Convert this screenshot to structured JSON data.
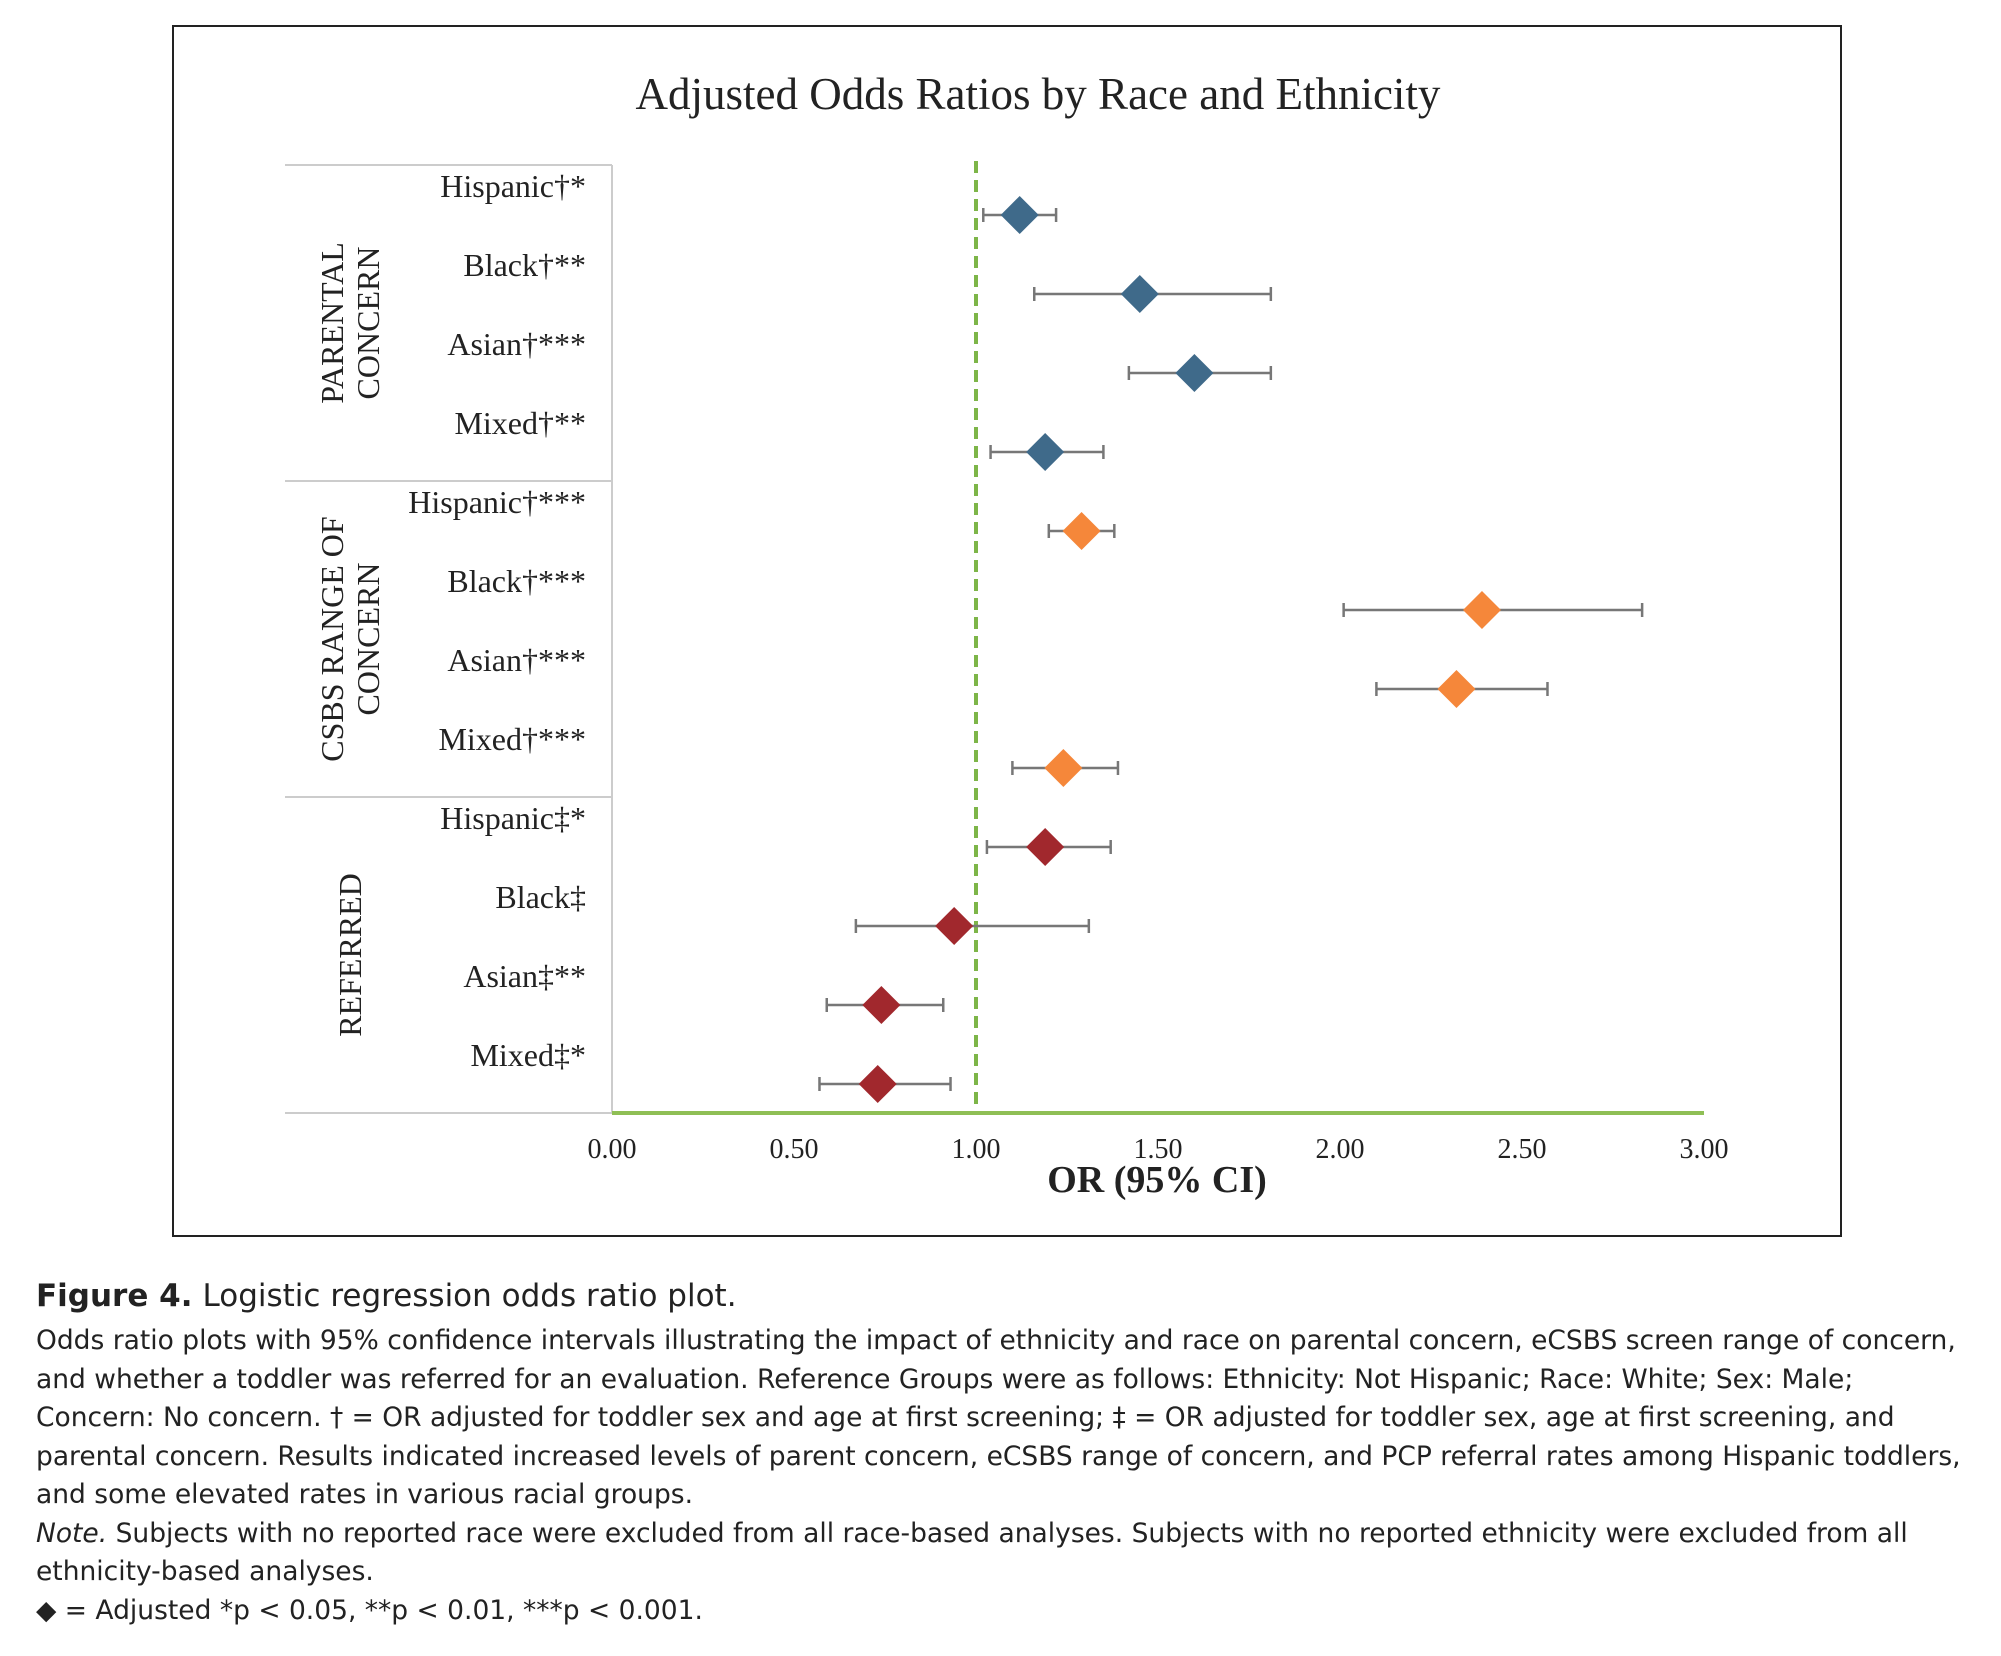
{
  "chart_data": {
    "type": "forest",
    "title": "Adjusted Odds Ratios by Race and Ethnicity",
    "xlabel": "OR (95% CI)",
    "xlim": [
      0,
      3
    ],
    "xticks": [
      0,
      0.5,
      1,
      1.5,
      2,
      2.5,
      3
    ],
    "xtick_labels": [
      "0.00",
      "0.50",
      "1.00",
      "1.50",
      "2.00",
      "2.50",
      "3.00"
    ],
    "reference_line": 1.0,
    "groups": [
      {
        "label": "PARENTAL CONCERN",
        "label_lines": [
          "PARENTAL",
          "CONCERN"
        ],
        "color": "#3f6a8a",
        "rows": [
          {
            "label": "Hispanic†*",
            "or": 1.12,
            "lo": 1.02,
            "hi": 1.22
          },
          {
            "label": "Black†**",
            "or": 1.45,
            "lo": 1.16,
            "hi": 1.81
          },
          {
            "label": "Asian†***",
            "or": 1.6,
            "lo": 1.42,
            "hi": 1.81
          },
          {
            "label": "Mixed†**",
            "or": 1.19,
            "lo": 1.04,
            "hi": 1.35
          }
        ]
      },
      {
        "label": "CSBS RANGE OF CONCERN",
        "label_lines": [
          "CSBS RANGE OF",
          "CONCERN"
        ],
        "color": "#f5873a",
        "rows": [
          {
            "label": "Hispanic†***",
            "or": 1.29,
            "lo": 1.2,
            "hi": 1.38
          },
          {
            "label": "Black†***",
            "or": 2.39,
            "lo": 2.01,
            "hi": 2.83
          },
          {
            "label": "Asian†***",
            "or": 2.32,
            "lo": 2.1,
            "hi": 2.57
          },
          {
            "label": "Mixed†***",
            "or": 1.24,
            "lo": 1.1,
            "hi": 1.39
          }
        ]
      },
      {
        "label": "REFERRED",
        "label_lines": [
          "REFERRED"
        ],
        "color": "#a1282d",
        "rows": [
          {
            "label": "Hispanic‡*",
            "or": 1.19,
            "lo": 1.03,
            "hi": 1.37
          },
          {
            "label": "Black‡",
            "or": 0.94,
            "lo": 0.67,
            "hi": 1.31
          },
          {
            "label": "Asian‡**",
            "or": 0.74,
            "lo": 0.59,
            "hi": 0.91
          },
          {
            "label": "Mixed‡*",
            "or": 0.73,
            "lo": 0.57,
            "hi": 0.93
          }
        ]
      }
    ]
  },
  "caption": {
    "figure_label": "Figure 4.",
    "figure_title": "Logistic regression odds ratio plot.",
    "body": "Odds ratio plots with 95% confidence intervals illustrating the impact of ethnicity and race on parental concern, eCSBS screen range of concern, and whether a toddler was referred for an evaluation. Reference Groups were as follows: Ethnicity: Not Hispanic; Race: White; Sex: Male; Concern: No concern. † = OR adjusted for toddler sex and age at first screening; ‡ = OR adjusted for toddler sex, age at first screening, and parental concern. Results indicated increased levels of parent concern, eCSBS range of concern, and PCP referral rates among Hispanic toddlers, and some elevated rates in various racial groups.",
    "note_label": "Note.",
    "note_text": " Subjects with no reported race were excluded from all race-based analyses. Subjects with no reported ethnicity were excluded from all ethnicity-based analyses.",
    "legend_line": "◆ = Adjusted *p < 0.05, **p < 0.01, ***p < 0.001."
  },
  "colors": {
    "reference_line": "#7db548",
    "axis_line": "#8fbf55",
    "whisker": "#777777",
    "divider": "#cccccc"
  }
}
